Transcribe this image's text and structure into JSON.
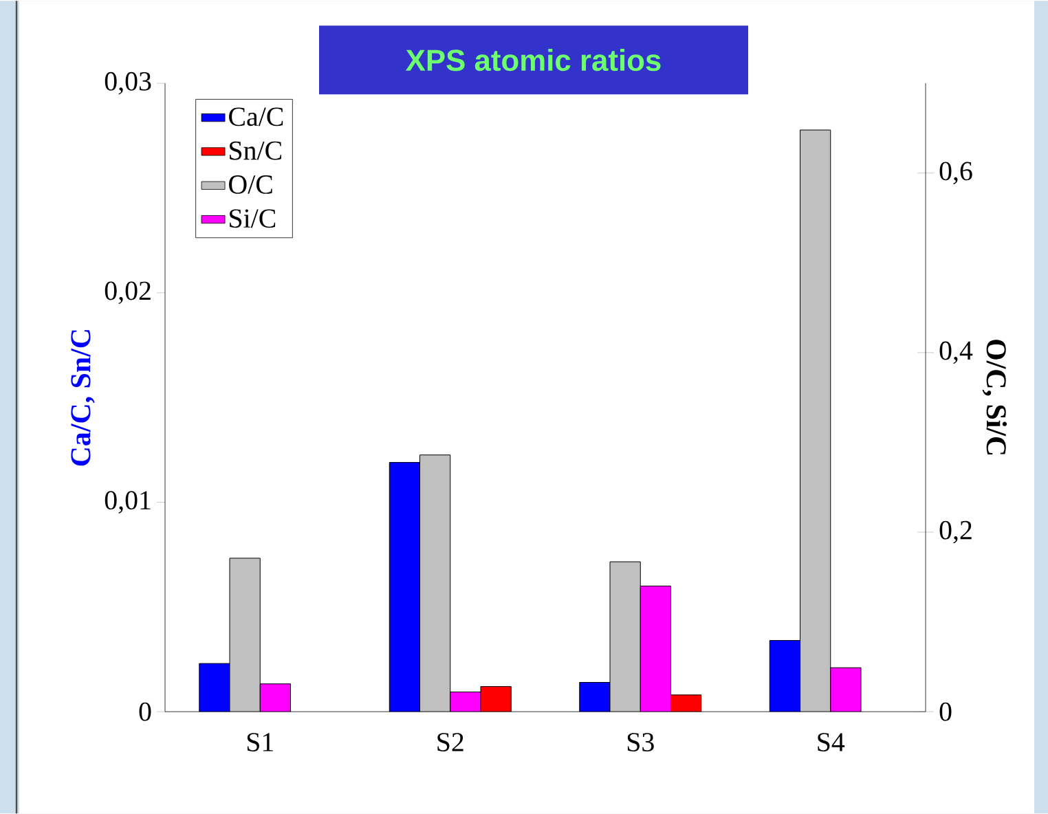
{
  "chart_data": {
    "type": "bar",
    "title": "XPS atomic ratios",
    "categories": [
      "S1",
      "S2",
      "S3",
      "S4"
    ],
    "ylabel": "Ca/C, Sn/C",
    "y2label": "O/C, Si/C",
    "ylim": [
      0,
      0.03
    ],
    "yticks": [
      0,
      {
        "value": 0.01,
        "label": "0,01"
      },
      {
        "value": 0.02,
        "label": "0,02"
      },
      {
        "value": 0.03,
        "label": "0,03"
      }
    ],
    "y2lim": [
      0,
      0.7
    ],
    "y2ticks": [
      0,
      {
        "value": 0.2,
        "label": "0,2"
      },
      {
        "value": 0.4,
        "label": "0,4"
      },
      {
        "value": 0.6,
        "label": "0,6"
      }
    ],
    "legend": "top left",
    "grid": false,
    "series": [
      {
        "name": "Ca/C",
        "color": "#0000ff",
        "values": [
          0.0023,
          0.0119,
          0.0014,
          0.0034
        ]
      },
      {
        "name": "Sn/C",
        "color": "#ff0000",
        "values": [
          null,
          0.0012,
          0.0008,
          null
        ]
      },
      {
        "name": "O/C",
        "color": "#c0c0c0",
        "axis": "y2",
        "values": [
          0.171,
          0.286,
          0.167,
          0.648
        ]
      },
      {
        "name": "Si/C",
        "color": "#ff00ff",
        "axis": "y2",
        "values": [
          0.031,
          0.022,
          0.14,
          0.049
        ]
      }
    ]
  }
}
